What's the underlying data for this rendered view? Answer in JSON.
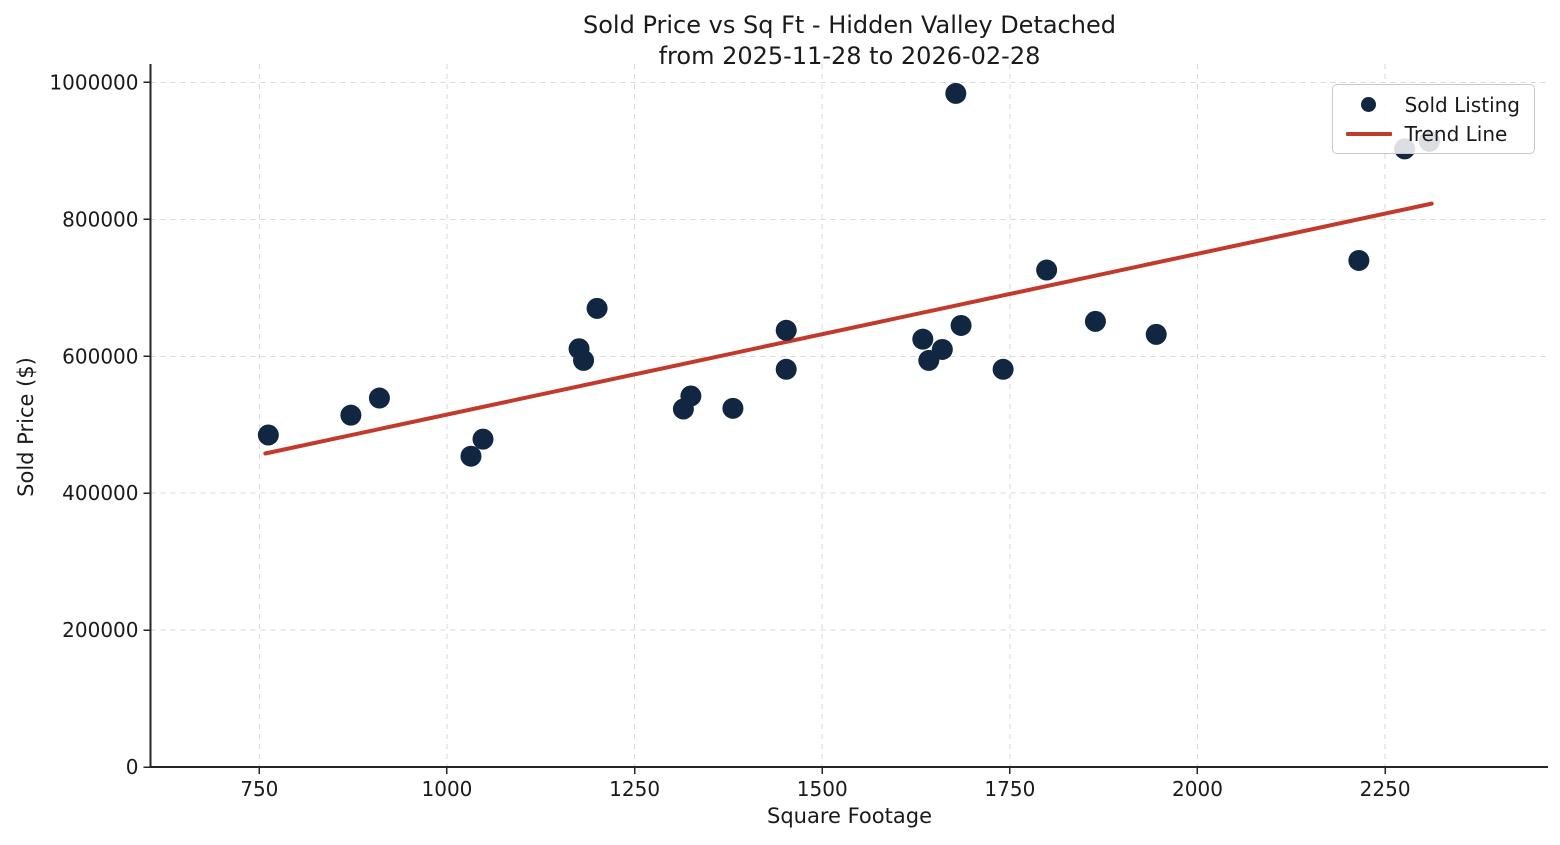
{
  "chart_data": {
    "type": "scatter",
    "title": "Sold Price vs Sq Ft - Hidden Valley Detached",
    "subtitle": "from 2025-11-28 to 2026-02-28",
    "xlabel": "Square Footage",
    "ylabel": "Sold Price ($)",
    "xlim": [
      605,
      2467
    ],
    "ylim": [
      0,
      1027000
    ],
    "x_ticks": [
      750,
      1000,
      1250,
      1500,
      1750,
      2000,
      2250
    ],
    "y_ticks": [
      0,
      200000,
      400000,
      600000,
      800000,
      1000000
    ],
    "grid": true,
    "grid_color": "#d9d9d9",
    "axis_color": "#262626",
    "text_color": "#1a1a1a",
    "background_color": "#ffffff",
    "legend_position": "upper right",
    "series": [
      {
        "name": "Sold Listing",
        "type": "scatter",
        "marker": "circle",
        "color": "#112640",
        "points": [
          [
            762,
            485000
          ],
          [
            872,
            514000
          ],
          [
            910,
            539000
          ],
          [
            1032,
            454000
          ],
          [
            1048,
            479000
          ],
          [
            1176,
            611000
          ],
          [
            1182,
            594000
          ],
          [
            1200,
            670000
          ],
          [
            1315,
            523000
          ],
          [
            1325,
            542000
          ],
          [
            1381,
            524000
          ],
          [
            1452,
            581000
          ],
          [
            1452,
            638000
          ],
          [
            1634,
            625000
          ],
          [
            1642,
            594000
          ],
          [
            1660,
            610000
          ],
          [
            1678,
            984000
          ],
          [
            1685,
            645000
          ],
          [
            1741,
            581000
          ],
          [
            1799,
            726000
          ],
          [
            1864,
            651000
          ],
          [
            1945,
            632000
          ],
          [
            2215,
            740000
          ],
          [
            2276,
            903000
          ],
          [
            2309,
            914000
          ]
        ]
      },
      {
        "name": "Trend Line",
        "type": "line",
        "color": "#c23a2c",
        "points": [
          [
            758,
            458000
          ],
          [
            2312,
            823000
          ]
        ]
      }
    ]
  }
}
